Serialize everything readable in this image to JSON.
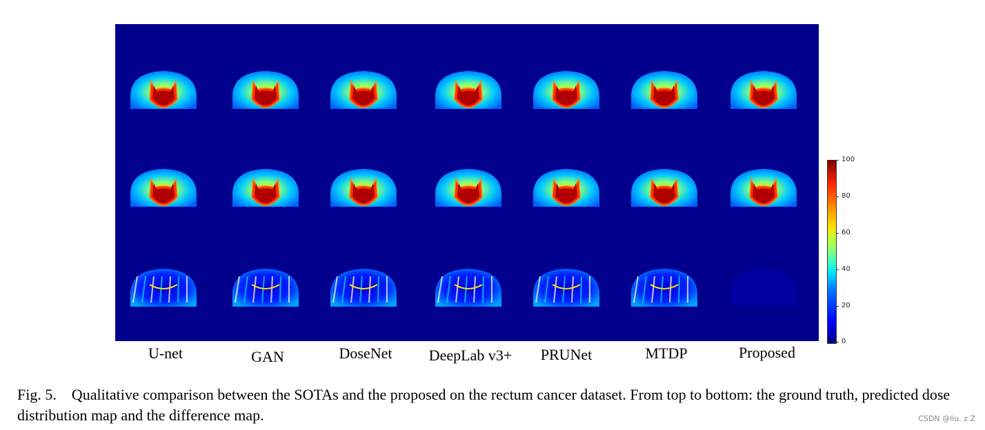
{
  "figure": {
    "methods": [
      "U-net",
      "GAN",
      "DoseNet",
      "DeepLab v3+",
      "PRUNet",
      "MTDP",
      "Proposed"
    ],
    "rows": [
      "ground truth",
      "predicted dose distribution map",
      "difference map"
    ],
    "colorbar": {
      "ticks": [
        "100",
        "80",
        "60",
        "40",
        "20",
        "0"
      ],
      "colormap": "jet",
      "colors": [
        "#000080",
        "#0000ff",
        "#00e0ff",
        "#80ff80",
        "#ffe000",
        "#ff2000",
        "#800000"
      ]
    },
    "background_color": "#00008c"
  },
  "caption": {
    "number": "Fig. 5.",
    "text": "Qualitative comparison between the SOTAs and the proposed on the rectum cancer dataset. From top to bottom: the ground truth, predicted dose distribution map and the difference map."
  },
  "watermark": "CSDN @liu. z Z"
}
